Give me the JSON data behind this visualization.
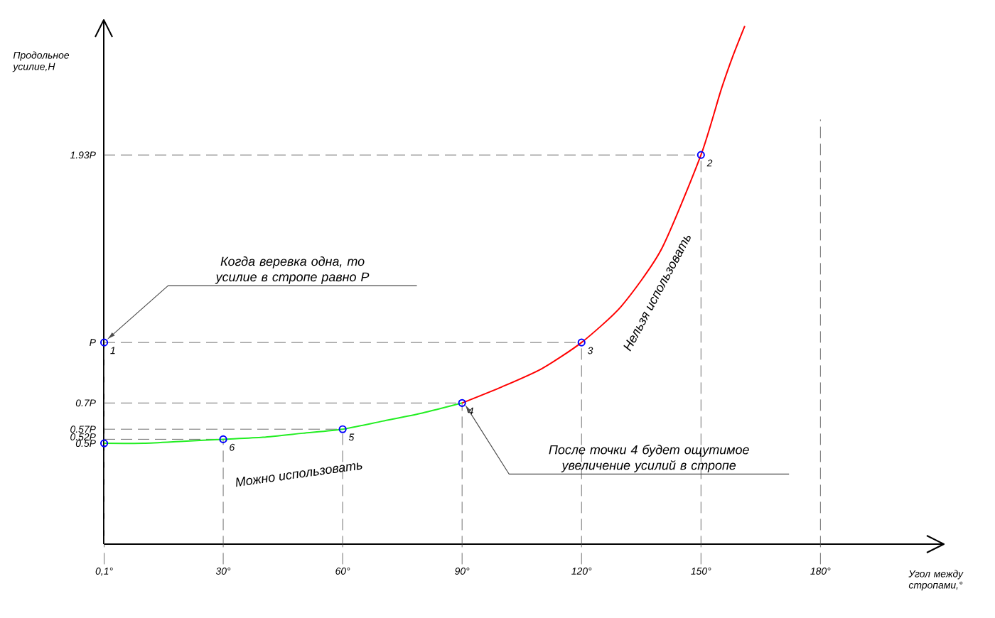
{
  "chart_data": {
    "type": "line",
    "xlabel": "Угол между стропами,°",
    "ylabel": "Продольное усилие,Н",
    "xlim": [
      0,
      211
    ],
    "ylim": [
      0,
      2.6
    ],
    "xticks": [
      {
        "value": 0.1,
        "label": "0,1°"
      },
      {
        "value": 30,
        "label": "30°"
      },
      {
        "value": 60,
        "label": "60°"
      },
      {
        "value": 90,
        "label": "90°"
      },
      {
        "value": 120,
        "label": "120°"
      },
      {
        "value": 150,
        "label": "150°"
      },
      {
        "value": 180,
        "label": "180°"
      }
    ],
    "yticks": [
      {
        "value": 0.5,
        "label": "0.5P"
      },
      {
        "value": 0.52,
        "label": "0.52P"
      },
      {
        "value": 0.57,
        "label": "0.57P"
      },
      {
        "value": 0.7,
        "label": "0.7P"
      },
      {
        "value": 1,
        "label": "P"
      },
      {
        "value": 1.93,
        "label": "1.93P"
      }
    ],
    "series": [
      {
        "name": "Можно использовать",
        "color": "#22ee22",
        "x": [
          0.1,
          10,
          20,
          30,
          40,
          50,
          60,
          70,
          80,
          90
        ],
        "values": [
          0.5,
          0.5,
          0.51,
          0.52,
          0.53,
          0.55,
          0.57,
          0.61,
          0.65,
          0.7
        ]
      },
      {
        "name": "Нельзя использовать",
        "color": "#ff0000",
        "x": [
          90,
          100,
          110,
          120,
          130,
          140,
          150,
          155,
          158,
          161
        ],
        "values": [
          0.7,
          0.78,
          0.87,
          1.0,
          1.18,
          1.46,
          1.93,
          2.25,
          2.42,
          2.57
        ]
      },
      {
        "type": "scatter",
        "color": "#0000ff",
        "marker": "circle",
        "x": [
          0.1,
          0.1,
          30,
          60,
          90,
          120,
          150
        ],
        "values": [
          1,
          0.5,
          0.52,
          0.57,
          0.7,
          1,
          1.93
        ]
      }
    ],
    "grid": true,
    "annotations": [
      "Когда веревка одна, то усилие в стропе равно P",
      "После точки 4 будет ощутимое увеличение усилий в стропе",
      {
        "text": "1",
        "x": 0.1,
        "y": 1
      },
      {
        "text": "6",
        "x": 30,
        "y": 0.52
      },
      {
        "text": "5",
        "x": 60,
        "y": 0.57
      },
      {
        "text": "4",
        "x": 90,
        "y": 0.7
      },
      {
        "text": "3",
        "x": 120,
        "y": 1
      },
      {
        "text": "2",
        "x": 150,
        "y": 1.93
      }
    ]
  }
}
